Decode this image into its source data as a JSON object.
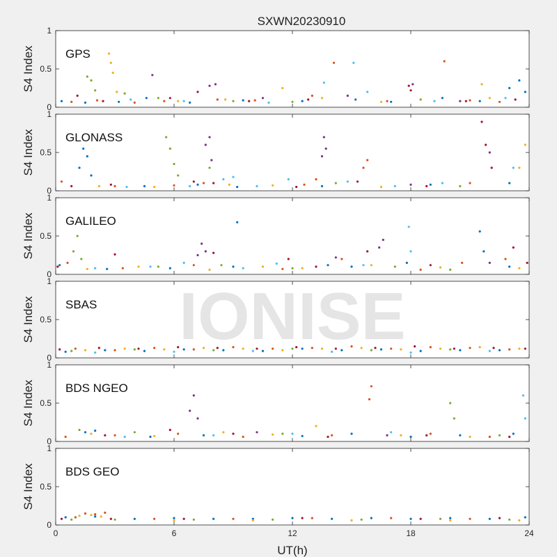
{
  "chart_data": {
    "type": "scatter",
    "title": "SXWN20230910",
    "xlabel": "UT(h)",
    "ylabel": "S4 Index",
    "watermark": "IONISE",
    "xlim": [
      0,
      24
    ],
    "ylim": [
      0,
      1
    ],
    "x_ticks": [
      0,
      6,
      12,
      18,
      24
    ],
    "x_tick_labels": [
      "0",
      "6",
      "12",
      "18",
      "24"
    ],
    "y_ticks": [
      0,
      0.5,
      1
    ],
    "y_tick_labels": [
      "0",
      "0.5",
      "1"
    ],
    "grid": false,
    "colors": [
      "#0072BD",
      "#D95319",
      "#EDB120",
      "#7E2F8E",
      "#77AC30",
      "#4DBEEE",
      "#A2142F"
    ],
    "panels": [
      {
        "name": "GPS",
        "series": [
          {
            "color": "#0072BD",
            "x": [
              0.3,
              1.5,
              3.2,
              4.6,
              6.8,
              9.5,
              12.5,
              15.2,
              17.0,
              19.6,
              21.5,
              23.0,
              23.5,
              23.8
            ],
            "y": [
              0.08,
              0.06,
              0.07,
              0.12,
              0.06,
              0.09,
              0.08,
              0.1,
              0.07,
              0.12,
              0.08,
              0.25,
              0.35,
              0.2
            ]
          },
          {
            "color": "#D95319",
            "x": [
              0.8,
              2.1,
              4.0,
              5.5,
              8.2,
              10.1,
              13.0,
              14.1,
              16.8,
              19.7,
              21.0,
              22.5
            ],
            "y": [
              0.07,
              0.09,
              0.06,
              0.08,
              0.1,
              0.09,
              0.15,
              0.58,
              0.08,
              0.6,
              0.09,
              0.07
            ]
          },
          {
            "color": "#EDB120",
            "x": [
              2.7,
              2.8,
              2.9,
              3.1,
              6.2,
              8.6,
              11.5,
              13.5,
              16.5,
              21.6,
              22.0
            ],
            "y": [
              0.7,
              0.58,
              0.45,
              0.2,
              0.08,
              0.1,
              0.25,
              0.12,
              0.07,
              0.3,
              0.12
            ]
          },
          {
            "color": "#7E2F8E",
            "x": [
              4.9,
              7.8,
              8.1,
              10.5,
              14.8,
              18.1,
              20.5
            ],
            "y": [
              0.42,
              0.28,
              0.3,
              0.12,
              0.15,
              0.3,
              0.08
            ]
          },
          {
            "color": "#77AC30",
            "x": [
              1.6,
              1.8,
              2.0,
              3.5,
              5.2,
              9.0,
              12.0,
              18.5
            ],
            "y": [
              0.4,
              0.35,
              0.22,
              0.18,
              0.12,
              0.08,
              0.07,
              0.1
            ]
          },
          {
            "color": "#4DBEEE",
            "x": [
              3.8,
              6.5,
              10.8,
              13.6,
              15.1,
              15.8,
              19.2,
              22.8
            ],
            "y": [
              0.1,
              0.08,
              0.06,
              0.32,
              0.58,
              0.2,
              0.08,
              0.12
            ]
          },
          {
            "color": "#A2142F",
            "x": [
              1.1,
              2.4,
              5.8,
              7.2,
              9.8,
              12.8,
              17.9,
              18.0,
              20.8,
              23.3
            ],
            "y": [
              0.15,
              0.08,
              0.12,
              0.2,
              0.08,
              0.1,
              0.28,
              0.22,
              0.08,
              0.1
            ]
          }
        ]
      },
      {
        "name": "GLONASS",
        "series": [
          {
            "color": "#0072BD",
            "x": [
              1.2,
              1.4,
              1.6,
              1.8,
              4.5,
              7.2,
              9.2,
              13.5,
              19.0,
              23.0
            ],
            "y": [
              0.3,
              0.55,
              0.45,
              0.2,
              0.06,
              0.08,
              0.05,
              0.06,
              0.08,
              0.1
            ]
          },
          {
            "color": "#D95319",
            "x": [
              0.3,
              3.0,
              6.0,
              7.5,
              12.6,
              13.2,
              15.6,
              15.8,
              21.0
            ],
            "y": [
              0.12,
              0.06,
              0.07,
              0.1,
              0.08,
              0.15,
              0.3,
              0.4,
              0.1
            ]
          },
          {
            "color": "#EDB120",
            "x": [
              2.2,
              5.0,
              8.8,
              11.0,
              16.5,
              23.5,
              23.8
            ],
            "y": [
              0.06,
              0.05,
              0.08,
              0.07,
              0.05,
              0.3,
              0.6
            ]
          },
          {
            "color": "#7E2F8E",
            "x": [
              7.6,
              7.8,
              7.9,
              13.5,
              13.6,
              13.7,
              18.0,
              22.0
            ],
            "y": [
              0.6,
              0.7,
              0.4,
              0.45,
              0.7,
              0.55,
              0.08,
              0.5
            ]
          },
          {
            "color": "#77AC30",
            "x": [
              5.6,
              5.8,
              6.0,
              6.2,
              7.8,
              14.2,
              20.5
            ],
            "y": [
              0.7,
              0.55,
              0.35,
              0.2,
              0.3,
              0.1,
              0.06
            ]
          },
          {
            "color": "#4DBEEE",
            "x": [
              3.6,
              6.8,
              8.5,
              9.0,
              10.2,
              11.8,
              14.8,
              17.2,
              19.6,
              23.2
            ],
            "y": [
              0.05,
              0.06,
              0.15,
              0.18,
              0.06,
              0.15,
              0.12,
              0.06,
              0.1,
              0.3
            ]
          },
          {
            "color": "#A2142F",
            "x": [
              0.8,
              2.8,
              7.0,
              8.0,
              12.2,
              15.3,
              18.8,
              21.6,
              21.8,
              22.1
            ],
            "y": [
              0.06,
              0.08,
              0.12,
              0.1,
              0.05,
              0.12,
              0.06,
              0.9,
              0.6,
              0.3
            ]
          }
        ]
      },
      {
        "name": "GALILEO",
        "series": [
          {
            "color": "#0072BD",
            "x": [
              0.2,
              2.6,
              5.8,
              9.0,
              9.2,
              13.8,
              15.0,
              17.8,
              21.5,
              21.7,
              23.0
            ],
            "y": [
              0.12,
              0.07,
              0.08,
              0.1,
              0.68,
              0.12,
              0.1,
              0.15,
              0.56,
              0.3,
              0.1
            ]
          },
          {
            "color": "#D95319",
            "x": [
              0.6,
              3.4,
              7.0,
              11.5,
              14.5,
              18.5,
              20.6,
              22.8
            ],
            "y": [
              0.15,
              0.08,
              0.12,
              0.07,
              0.2,
              0.06,
              0.15,
              0.2
            ]
          },
          {
            "color": "#EDB120",
            "x": [
              1.6,
              4.2,
              7.8,
              10.5,
              12.5,
              16.0,
              19.5,
              23.5
            ],
            "y": [
              0.07,
              0.1,
              0.06,
              0.1,
              0.08,
              0.12,
              0.09,
              0.08
            ]
          },
          {
            "color": "#7E2F8E",
            "x": [
              7.2,
              7.4,
              7.6,
              14.2,
              16.4,
              16.6,
              22.0
            ],
            "y": [
              0.25,
              0.4,
              0.3,
              0.22,
              0.35,
              0.45,
              0.15
            ]
          },
          {
            "color": "#77AC30",
            "x": [
              0.9,
              1.1,
              1.3,
              5.2,
              8.4,
              12.0,
              17.2,
              20.0
            ],
            "y": [
              0.3,
              0.5,
              0.2,
              0.1,
              0.12,
              0.08,
              0.1,
              0.06
            ]
          },
          {
            "color": "#4DBEEE",
            "x": [
              2.0,
              4.8,
              6.5,
              9.5,
              11.2,
              15.6,
              17.9,
              18.0
            ],
            "y": [
              0.08,
              0.1,
              0.15,
              0.08,
              0.14,
              0.12,
              0.62,
              0.3
            ]
          },
          {
            "color": "#A2142F",
            "x": [
              0.1,
              3.0,
              8.0,
              11.8,
              13.2,
              15.8,
              19.0,
              23.2,
              23.9
            ],
            "y": [
              0.1,
              0.26,
              0.28,
              0.2,
              0.1,
              0.3,
              0.12,
              0.35,
              0.15
            ]
          }
        ]
      },
      {
        "name": "SBAS",
        "series": [
          {
            "color": "#0072BD",
            "x": [
              0.5,
              2.5,
              4.5,
              6.5,
              8.5,
              10.5,
              12.5,
              14.5,
              16.5,
              18.5,
              20.5,
              22.5
            ],
            "y": [
              0.08,
              0.1,
              0.09,
              0.11,
              0.1,
              0.09,
              0.12,
              0.1,
              0.11,
              0.09,
              0.1,
              0.1
            ]
          },
          {
            "color": "#D95319",
            "x": [
              1.0,
              3.0,
              5.0,
              7.0,
              9.0,
              11.0,
              13.0,
              15.0,
              17.0,
              19.0,
              21.0,
              23.0
            ],
            "y": [
              0.12,
              0.1,
              0.13,
              0.11,
              0.14,
              0.12,
              0.13,
              0.15,
              0.12,
              0.14,
              0.13,
              0.11
            ]
          },
          {
            "color": "#EDB120",
            "x": [
              1.5,
              3.5,
              5.5,
              7.5,
              9.5,
              11.5,
              13.5,
              15.5,
              17.5,
              19.5,
              21.5,
              23.5
            ],
            "y": [
              0.1,
              0.12,
              0.11,
              0.13,
              0.12,
              0.1,
              0.12,
              0.13,
              0.11,
              0.12,
              0.14,
              0.12
            ]
          },
          {
            "color": "#77AC30",
            "x": [
              0.8,
              4.0,
              8.0,
              12.0,
              16.0,
              20.0
            ],
            "y": [
              0.09,
              0.11,
              0.1,
              0.12,
              0.1,
              0.11
            ]
          },
          {
            "color": "#4DBEEE",
            "x": [
              2.0,
              6.0,
              10.0,
              14.0,
              18.0,
              22.0
            ],
            "y": [
              0.07,
              0.08,
              0.09,
              0.08,
              0.07,
              0.09
            ]
          },
          {
            "color": "#A2142F",
            "x": [
              0.2,
              2.2,
              4.2,
              6.2,
              8.2,
              10.2,
              12.2,
              14.2,
              16.2,
              18.2,
              20.2,
              22.2,
              23.8
            ],
            "y": [
              0.11,
              0.13,
              0.12,
              0.14,
              0.13,
              0.12,
              0.14,
              0.12,
              0.13,
              0.15,
              0.12,
              0.13,
              0.12
            ]
          }
        ]
      },
      {
        "name": "BDS NGEO",
        "series": [
          {
            "color": "#0072BD",
            "x": [
              1.5,
              2.0,
              4.8,
              7.5,
              12.5,
              15.0,
              18.0,
              20.5,
              23.2
            ],
            "y": [
              0.12,
              0.14,
              0.06,
              0.08,
              0.07,
              0.1,
              0.06,
              0.08,
              0.1
            ]
          },
          {
            "color": "#D95319",
            "x": [
              0.5,
              3.0,
              6.2,
              9.5,
              14.0,
              15.9,
              16.0,
              19.0,
              22.0
            ],
            "y": [
              0.06,
              0.08,
              0.1,
              0.06,
              0.08,
              0.55,
              0.72,
              0.1,
              0.06
            ]
          },
          {
            "color": "#EDB120",
            "x": [
              1.8,
              5.0,
              8.5,
              11.0,
              13.2,
              17.5,
              21.0
            ],
            "y": [
              0.1,
              0.07,
              0.12,
              0.09,
              0.2,
              0.08,
              0.06
            ]
          },
          {
            "color": "#7E2F8E",
            "x": [
              6.8,
              7.0,
              7.2,
              10.2,
              16.8
            ],
            "y": [
              0.4,
              0.6,
              0.3,
              0.12,
              0.08
            ]
          },
          {
            "color": "#77AC30",
            "x": [
              1.2,
              4.0,
              11.5,
              20.0,
              20.2,
              22.5
            ],
            "y": [
              0.15,
              0.12,
              0.1,
              0.5,
              0.3,
              0.08
            ]
          },
          {
            "color": "#4DBEEE",
            "x": [
              3.5,
              8.0,
              12.0,
              17.0,
              23.7,
              23.8
            ],
            "y": [
              0.06,
              0.08,
              0.1,
              0.12,
              0.6,
              0.3
            ]
          },
          {
            "color": "#A2142F",
            "x": [
              2.5,
              5.8,
              9.0,
              13.8,
              18.8,
              23.0
            ],
            "y": [
              0.08,
              0.15,
              0.1,
              0.06,
              0.08,
              0.06
            ]
          }
        ]
      },
      {
        "name": "BDS GEO",
        "series": [
          {
            "color": "#0072BD",
            "x": [
              0.5,
              2.0,
              4.0,
              6.0,
              8.0,
              10.0,
              12.0,
              14.0,
              16.0,
              18.0,
              20.0,
              22.0,
              23.8
            ],
            "y": [
              0.1,
              0.11,
              0.08,
              0.09,
              0.08,
              0.08,
              0.09,
              0.08,
              0.09,
              0.08,
              0.09,
              0.08,
              0.1
            ]
          },
          {
            "color": "#D95319",
            "x": [
              1.0,
              1.5,
              2.0,
              2.5,
              5.0,
              9.0,
              13.0,
              17.0,
              21.0
            ],
            "y": [
              0.1,
              0.15,
              0.14,
              0.16,
              0.08,
              0.08,
              0.09,
              0.09,
              0.08
            ]
          },
          {
            "color": "#EDB120",
            "x": [
              1.2,
              1.8,
              2.3,
              6.0,
              10.0,
              15.0,
              20.0,
              23.5
            ],
            "y": [
              0.12,
              0.13,
              0.11,
              0.06,
              0.06,
              0.06,
              0.06,
              0.06
            ]
          },
          {
            "color": "#77AC30",
            "x": [
              0.8,
              3.0,
              7.0,
              11.0,
              15.5,
              19.5,
              23.0
            ],
            "y": [
              0.07,
              0.07,
              0.07,
              0.07,
              0.07,
              0.08,
              0.07
            ]
          },
          {
            "color": "#A2142F",
            "x": [
              0.3,
              2.8,
              6.5,
              12.5,
              18.5,
              22.5
            ],
            "y": [
              0.08,
              0.08,
              0.08,
              0.09,
              0.08,
              0.09
            ]
          }
        ]
      }
    ]
  }
}
